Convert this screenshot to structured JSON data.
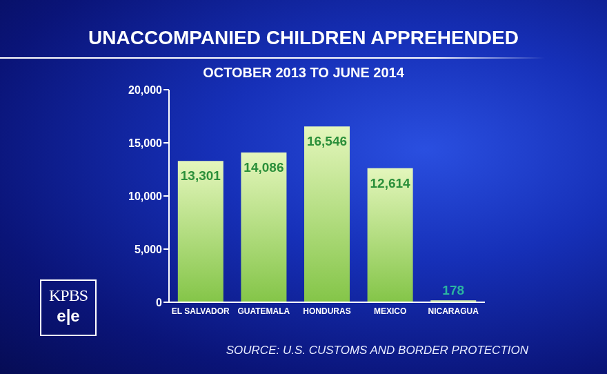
{
  "chart_data": {
    "type": "bar",
    "title": "UNACCOMPANIED CHILDREN APPREHENDED",
    "subtitle": "OCTOBER 2013 TO JUNE 2014",
    "categories": [
      "EL SALVADOR",
      "GUATEMALA",
      "HONDURAS",
      "MEXICO",
      "NICARAGUA"
    ],
    "values": [
      13301,
      14086,
      16546,
      12614,
      178
    ],
    "value_labels": [
      "13,301",
      "14,086",
      "16,546",
      "12,614",
      "178"
    ],
    "color": "#84c548",
    "ylim": [
      0,
      20000
    ],
    "yticks": [
      0,
      {
        "value": 5000,
        "label": "5,000"
      },
      {
        "value": 10000,
        "label": "10,000"
      },
      {
        "value": 15000,
        "label": "15,000"
      },
      {
        "value": 20000,
        "label": "20,000"
      }
    ],
    "grid": false,
    "data_labels": true,
    "source": "SOURCE: U.S. CUSTOMS AND BORDER PROTECTION",
    "logo": [
      "KPBS",
      "e|e"
    ]
  }
}
